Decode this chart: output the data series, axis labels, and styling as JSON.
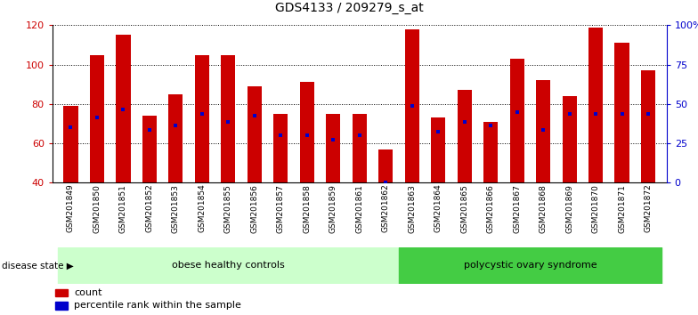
{
  "title": "GDS4133 / 209279_s_at",
  "samples": [
    "GSM201849",
    "GSM201850",
    "GSM201851",
    "GSM201852",
    "GSM201853",
    "GSM201854",
    "GSM201855",
    "GSM201856",
    "GSM201857",
    "GSM201858",
    "GSM201859",
    "GSM201861",
    "GSM201862",
    "GSM201863",
    "GSM201864",
    "GSM201865",
    "GSM201866",
    "GSM201867",
    "GSM201868",
    "GSM201869",
    "GSM201870",
    "GSM201871",
    "GSM201872"
  ],
  "count_values": [
    79,
    105,
    115,
    74,
    85,
    105,
    105,
    89,
    75,
    91,
    75,
    75,
    57,
    118,
    73,
    87,
    71,
    103,
    92,
    84,
    119,
    111,
    97
  ],
  "percentile_values": [
    68,
    73,
    77,
    67,
    69,
    75,
    71,
    74,
    64,
    64,
    62,
    64,
    40,
    79,
    66,
    71,
    69,
    76,
    67,
    75,
    75,
    75,
    75
  ],
  "obese_count": 13,
  "polycystic_count": 10,
  "bar_color": "#cc0000",
  "percentile_color": "#0000cc",
  "obese_bg": "#ccffcc",
  "polycystic_bg": "#44cc44",
  "left_axis_color": "#cc0000",
  "right_axis_color": "#0000cc",
  "ylim_left": [
    40,
    120
  ],
  "yticks_left": [
    40,
    60,
    80,
    100,
    120
  ],
  "yticks_right": [
    0,
    25,
    50,
    75,
    100
  ],
  "ytick_labels_right": [
    "0",
    "25",
    "50",
    "75",
    "100%"
  ],
  "legend_count_label": "count",
  "legend_percentile_label": "percentile rank within the sample",
  "obese_label": "obese healthy controls",
  "polycystic_label": "polycystic ovary syndrome",
  "disease_state_label": "disease state",
  "bar_width": 0.55,
  "title_color": "#000000",
  "title_fontsize": 10,
  "bar_bottom": 40
}
